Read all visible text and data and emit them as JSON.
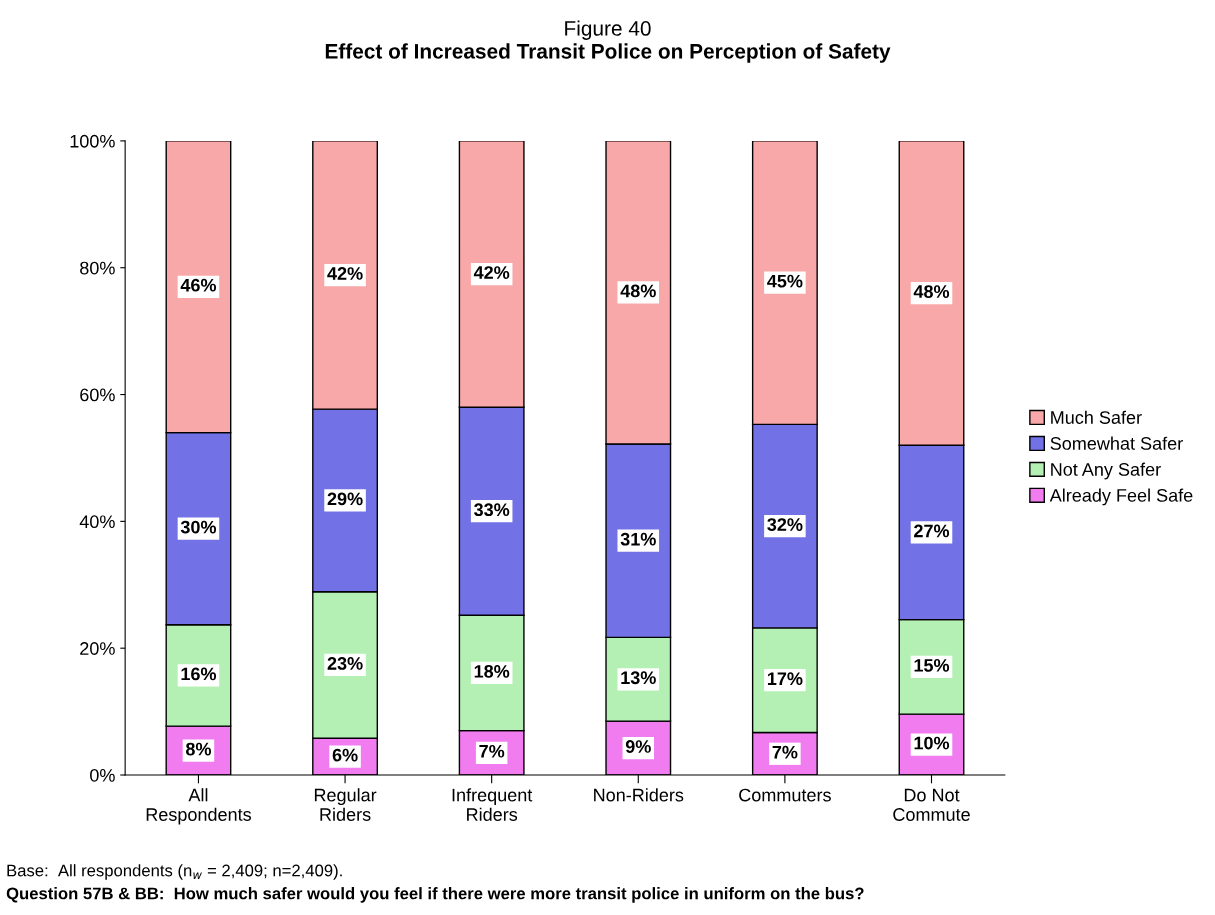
{
  "chart_data": {
    "type": "bar",
    "stacked": true,
    "title": "Figure 40",
    "subtitle": "Effect of Increased Transit Police on Perception of Safety",
    "categories": [
      "All\nRespondents",
      "Regular\nRiders",
      "Infrequent\nRiders",
      "Non-Riders",
      "Commuters",
      "Do Not\nCommute"
    ],
    "series": [
      {
        "name": "Already Feel Safe",
        "color": "#f07cf0",
        "values": [
          7.7,
          5.8,
          7.0,
          8.5,
          6.7,
          9.6
        ],
        "value_labels": [
          "8%",
          "6%",
          "7%",
          "9%",
          "7%",
          "10%"
        ]
      },
      {
        "name": "Not Any Safer",
        "color": "#b4f0b4",
        "values": [
          16.0,
          23.1,
          18.2,
          13.2,
          16.5,
          14.9
        ],
        "value_labels": [
          "16%",
          "23%",
          "18%",
          "13%",
          "17%",
          "15%"
        ]
      },
      {
        "name": "Somewhat Safer",
        "color": "#7272e6",
        "values": [
          30.3,
          28.8,
          32.8,
          30.5,
          32.1,
          27.5
        ],
        "value_labels": [
          "30%",
          "29%",
          "33%",
          "31%",
          "32%",
          "27%"
        ]
      },
      {
        "name": "Much Safer",
        "color": "#f8a8a8",
        "values": [
          46.0,
          42.3,
          42.0,
          47.8,
          44.7,
          48.0
        ],
        "value_labels": [
          "46%",
          "42%",
          "42%",
          "48%",
          "45%",
          "48%"
        ]
      }
    ],
    "ylim": [
      0,
      100
    ],
    "yticks": [
      {
        "value": 0,
        "label": "0%"
      },
      {
        "value": 20,
        "label": "20%"
      },
      {
        "value": 40,
        "label": "40%"
      },
      {
        "value": 60,
        "label": "60%"
      },
      {
        "value": 80,
        "label": "80%"
      },
      {
        "value": 100,
        "label": "100%"
      }
    ],
    "grid": false,
    "legend": "right",
    "annotations": [
      "Base:  All respondents (n$_{w}$ = 2,409; n=2,409).",
      "Question 57B & BB:  How much safer would you feel if there were more transit police in uniform on the bus?"
    ]
  }
}
